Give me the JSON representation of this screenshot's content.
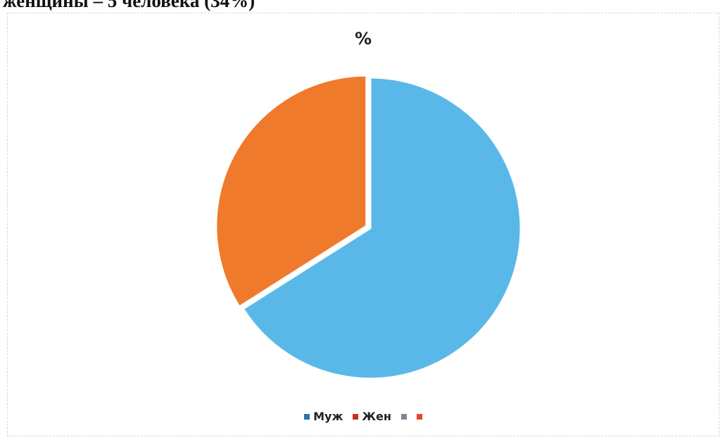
{
  "page": {
    "heading_fragment": "женщины – 5 человека (34%)"
  },
  "chart_data": {
    "type": "pie",
    "title": "%",
    "slices": [
      {
        "label": "Муж",
        "value": 66,
        "color": "#5ab8e8"
      },
      {
        "label": "Жен",
        "value": 34,
        "color": "#f07a2c"
      }
    ],
    "legend": {
      "placement": "bottom",
      "entries": [
        {
          "label": "Муж",
          "color": "#2f6fbd"
        },
        {
          "label": "Жен",
          "color": "#c4331c"
        },
        {
          "label": "",
          "color": "#7e8598"
        },
        {
          "label": "",
          "color": "#e8452a"
        }
      ]
    }
  }
}
